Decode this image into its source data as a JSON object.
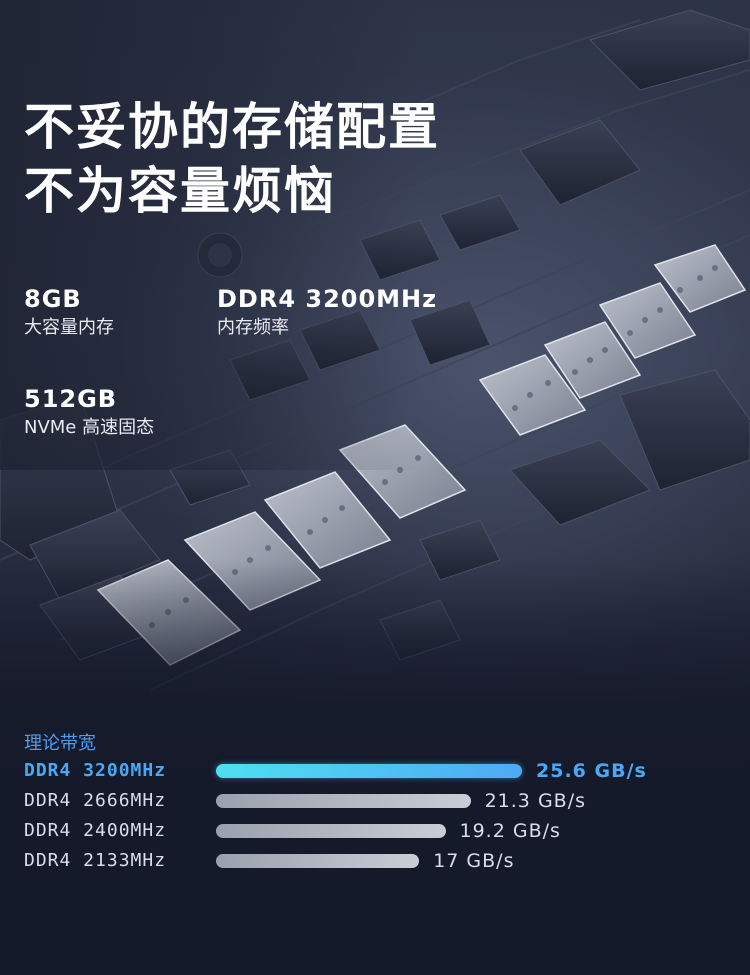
{
  "headline": [
    "不妥协的存储配置",
    "不为容量烦恼"
  ],
  "specs": [
    {
      "value": "8GB",
      "label": "大容量内存"
    },
    {
      "value": "DDR4 3200MHz",
      "label": "内存频率"
    },
    {
      "value": "512GB",
      "label": "NVMe 高速固态"
    }
  ],
  "bandwidth": {
    "title": "理论带宽",
    "unit": "GB/s",
    "rows": [
      {
        "name": "DDR4 3200MHz",
        "value": 25.6,
        "value_text": "25.6 GB/s",
        "highlight": true
      },
      {
        "name": "DDR4 2666MHz",
        "value": 21.3,
        "value_text": "21.3 GB/s",
        "highlight": false
      },
      {
        "name": "DDR4 2400MHz",
        "value": 19.2,
        "value_text": "19.2 GB/s",
        "highlight": false
      },
      {
        "name": "DDR4 2133MHz",
        "value": 17,
        "value_text": "17 GB/s",
        "highlight": false
      }
    ]
  },
  "colors": {
    "accent": "#4aa8f5",
    "highlight_bar_start": "#4de0f0",
    "bar_gray": "#c9cdd6",
    "background": "#151a2a"
  }
}
